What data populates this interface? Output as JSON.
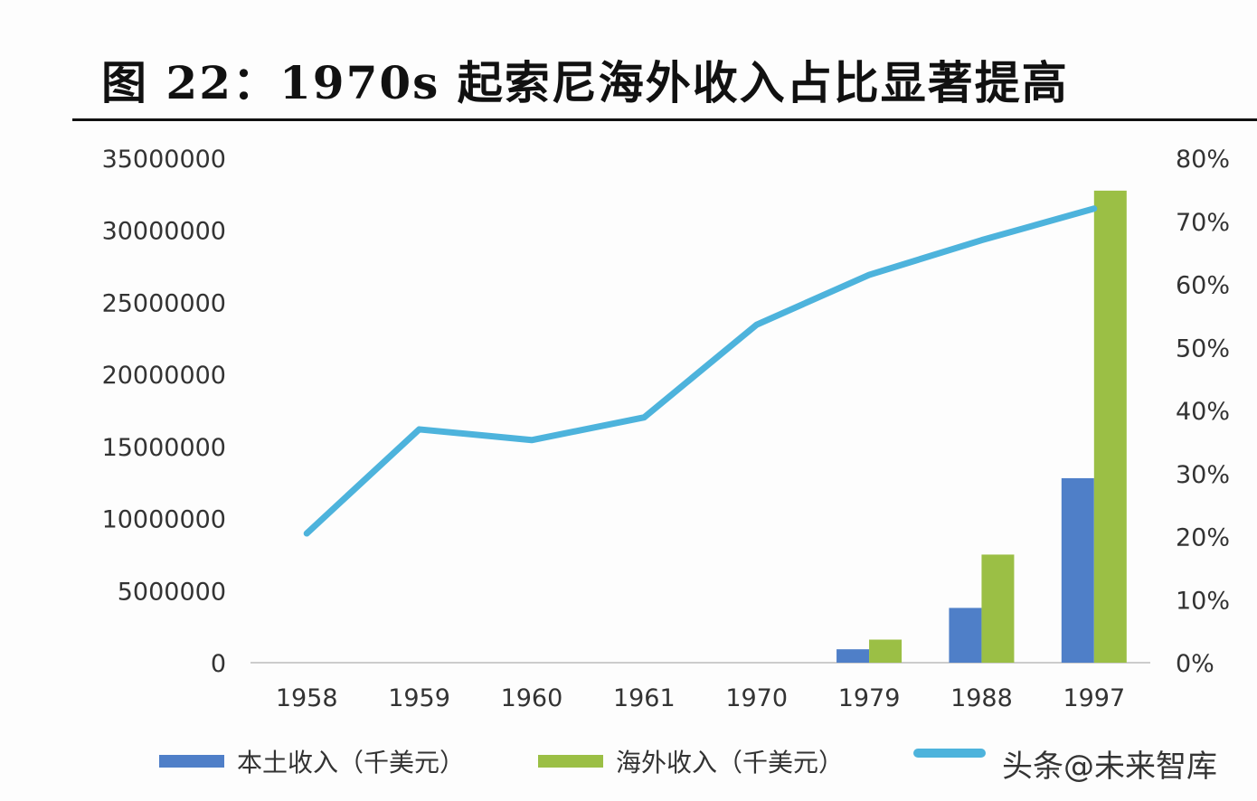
{
  "title": "图 22：1970s 起索尼海外收入占比显著提高",
  "watermark": "头条@未来智库",
  "chart_data": {
    "type": "bar+line",
    "title": "图 22：1970s 起索尼海外收入占比显著提高",
    "categories": [
      "1958",
      "1959",
      "1960",
      "1961",
      "1970",
      "1979",
      "1988",
      "1997"
    ],
    "y_left": {
      "range": [
        0,
        35000000
      ],
      "ticks": [
        "0",
        "5000000",
        "10000000",
        "15000000",
        "20000000",
        "25000000",
        "30000000",
        "35000000"
      ]
    },
    "y_right": {
      "range": [
        0,
        80
      ],
      "ticks": [
        "0%",
        "10%",
        "20%",
        "30%",
        "40%",
        "50%",
        "60%",
        "70%",
        "80%"
      ]
    },
    "grid": false,
    "legend_position": "bottom",
    "series": [
      {
        "name": "本土收入（千美元）",
        "type": "bar",
        "axis": "left",
        "color": "#4f7fc8",
        "values": [
          null,
          null,
          null,
          null,
          null,
          930000,
          3800000,
          12800000
        ]
      },
      {
        "name": "海外收入（千美元）",
        "type": "bar",
        "axis": "left",
        "color": "#9bbf45",
        "values": [
          null,
          null,
          null,
          null,
          null,
          1600000,
          7500000,
          32750000
        ]
      },
      {
        "type": "line",
        "axis": "right",
        "color": "#4db3dc",
        "values": [
          20.5,
          37,
          35.3,
          38.9,
          53.6,
          61.5,
          67,
          72
        ]
      }
    ]
  }
}
